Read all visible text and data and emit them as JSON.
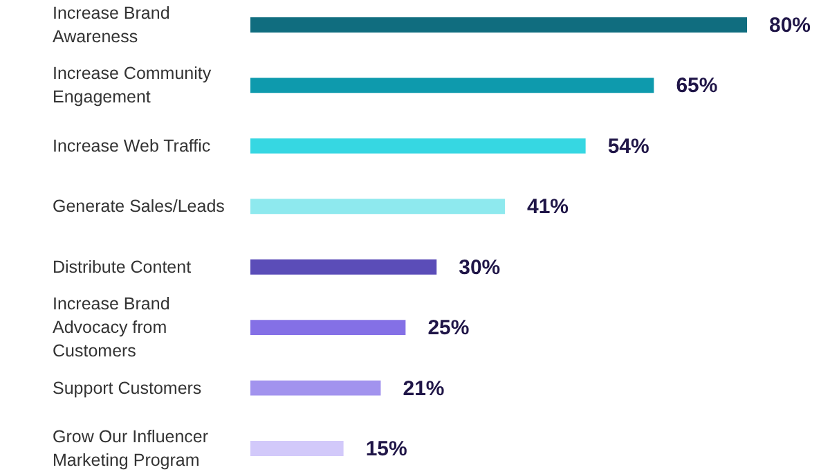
{
  "chart_data": {
    "type": "bar",
    "orientation": "horizontal",
    "categories": [
      "Increase Brand Awareness",
      "Increase Community Engagement",
      "Increase Web Traffic",
      "Generate Sales/Leads",
      "Distribute Content",
      "Increase Brand Advocacy from Customers",
      "Support Customers",
      "Grow Our Influencer Marketing Program"
    ],
    "values": [
      80,
      65,
      54,
      41,
      30,
      25,
      21,
      15
    ],
    "colors": [
      "#106d7f",
      "#0e9aad",
      "#36d7e2",
      "#8ee9ee",
      "#5b4db8",
      "#8470e6",
      "#a293ee",
      "#d2c9fa"
    ],
    "value_labels": [
      "80%",
      "65%",
      "54%",
      "41%",
      "30%",
      "25%",
      "21%",
      "15%"
    ]
  }
}
